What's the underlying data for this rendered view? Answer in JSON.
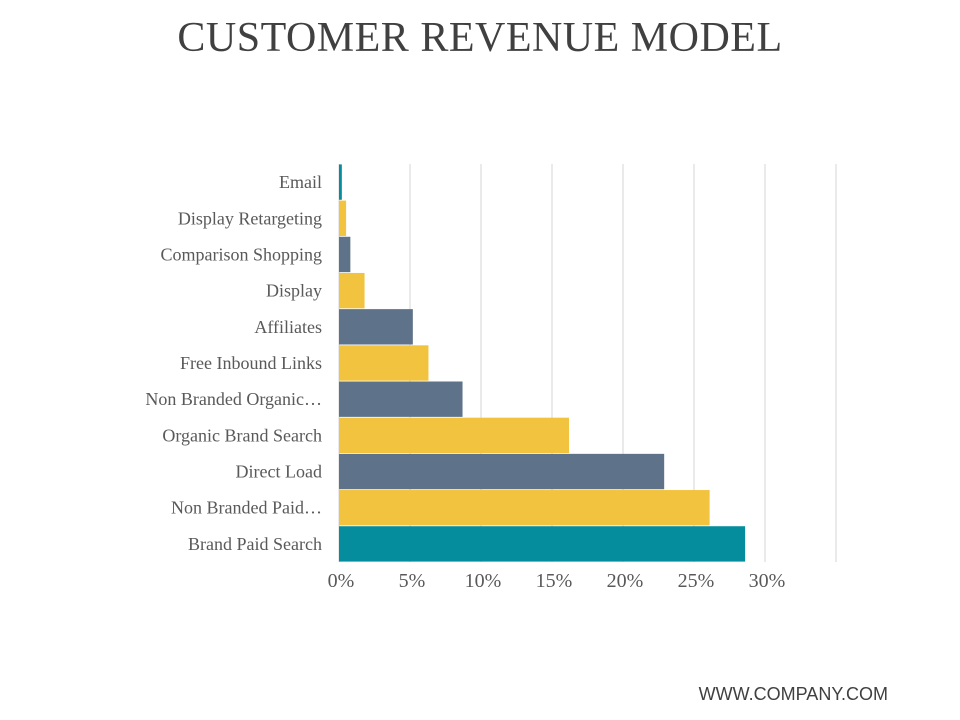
{
  "slide": {
    "title": "CUSTOMER REVENUE MODEL",
    "footer": "WWW.COMPANY.COM"
  },
  "colors": {
    "teal": "#068d9d",
    "yellow": "#f2c33f",
    "slate": "#5e738a",
    "grid": "#e4e4e4"
  },
  "chart_data": {
    "type": "bar",
    "orientation": "horizontal",
    "title": "",
    "xlabel": "",
    "ylabel": "",
    "xlim": [
      0,
      0.35
    ],
    "grid": true,
    "legend": "none",
    "ticks": [
      "0%",
      "5%",
      "10%",
      "15%",
      "20%",
      "25%",
      "30%"
    ],
    "tick_values": [
      0,
      0.05,
      0.1,
      0.15,
      0.2,
      0.25,
      0.3
    ],
    "categories": [
      "Email",
      "Display Retargeting",
      "Comparison Shopping",
      "Display",
      "Affiliates",
      "Free Inbound Links",
      "Non Branded Organic…",
      "Organic Brand Search",
      "Direct Load",
      "Non Branded Paid…",
      "Brand Paid Search"
    ],
    "values": [
      0.002,
      0.005,
      0.008,
      0.018,
      0.052,
      0.063,
      0.087,
      0.162,
      0.229,
      0.261,
      0.286
    ],
    "bar_colors": [
      "#068d9d",
      "#f2c33f",
      "#5e738a",
      "#f2c33f",
      "#5e738a",
      "#f2c33f",
      "#5e738a",
      "#f2c33f",
      "#5e738a",
      "#f2c33f",
      "#068d9d"
    ]
  }
}
